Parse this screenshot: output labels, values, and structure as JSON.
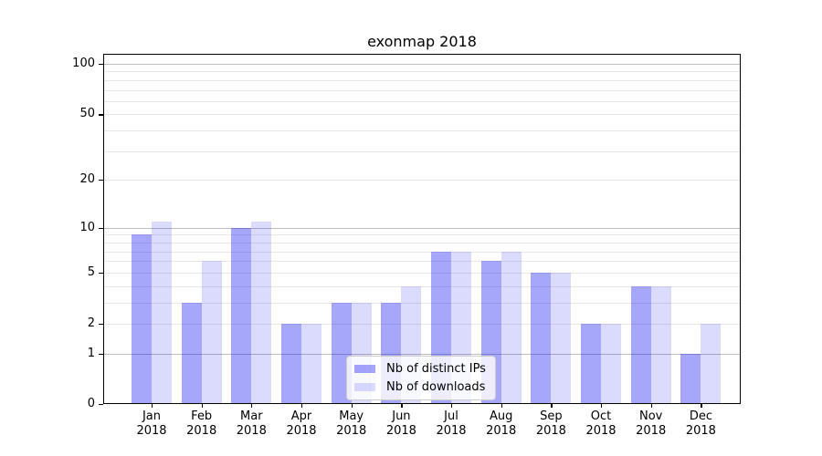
{
  "title": "exonmap 2018",
  "chart_data": {
    "type": "bar",
    "title": "exonmap 2018",
    "categories": [
      "Jan 2018",
      "Feb 2018",
      "Mar 2018",
      "Apr 2018",
      "May 2018",
      "Jun 2018",
      "Jul 2018",
      "Aug 2018",
      "Sep 2018",
      "Oct 2018",
      "Nov 2018",
      "Dec 2018"
    ],
    "category_months": [
      "Jan",
      "Feb",
      "Mar",
      "Apr",
      "May",
      "Jun",
      "Jul",
      "Aug",
      "Sep",
      "Oct",
      "Nov",
      "Dec"
    ],
    "category_year": "2018",
    "series": [
      {
        "name": "Nb of distinct IPs",
        "color": "rgba(0,0,240,0.35)",
        "color_hex": "#a6a6f7",
        "values": [
          9,
          3,
          10,
          2,
          3,
          3,
          7,
          6,
          5,
          2,
          4,
          1
        ]
      },
      {
        "name": "Nb of downloads",
        "color": "rgba(0,0,240,0.14)",
        "color_hex": "#dcdcf9",
        "values": [
          11,
          6,
          11,
          2,
          3,
          4,
          7,
          7,
          5,
          2,
          4,
          2
        ]
      }
    ],
    "xlabel": "",
    "ylabel": "",
    "yscale": "log1p",
    "ylim": [
      0,
      115
    ],
    "y_ticks": [
      0,
      1,
      2,
      5,
      10,
      20,
      50,
      100
    ],
    "y_major_gridline_values": [
      1,
      10,
      100
    ],
    "y_minor_gridline_values": [
      2,
      3,
      4,
      5,
      6,
      7,
      8,
      9,
      20,
      30,
      40,
      50,
      60,
      70,
      80,
      90
    ],
    "grid": true,
    "legend_position": "lower center"
  },
  "colors": {
    "background": "#ffffff",
    "axis": "#000000",
    "major_gridline": "#bdbdbd",
    "minor_gridline": "#e8e8e8",
    "legend_border": "#cccccc",
    "text": "#000000"
  }
}
